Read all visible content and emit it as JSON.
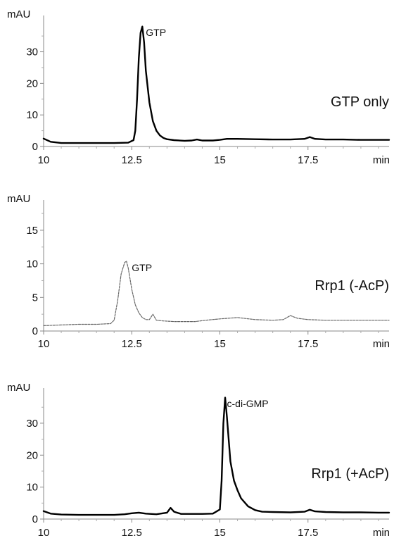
{
  "chart_data": [
    {
      "type": "line",
      "ylabel": "mAU",
      "xlabel": "min",
      "sample_label": "GTP only",
      "xlim": [
        10,
        19.8
      ],
      "ylim": [
        0,
        40
      ],
      "xticks": [
        10,
        12.5,
        15,
        17.5
      ],
      "xtick_labels": [
        "10",
        "12.5",
        "15",
        "17.5"
      ],
      "yticks": [
        0,
        10,
        20,
        30
      ],
      "ytick_labels": [
        "0",
        "10",
        "20",
        "30"
      ],
      "line_style": "solid",
      "line_width": 2.4,
      "annotations": [
        {
          "text": "GTP",
          "x": 12.9,
          "y": 35
        }
      ],
      "series": [
        {
          "x": [
            10.0,
            10.2,
            10.5,
            11.0,
            11.5,
            12.0,
            12.4,
            12.55,
            12.6,
            12.65,
            12.7,
            12.75,
            12.8,
            12.85,
            12.9,
            13.0,
            13.1,
            13.2,
            13.3,
            13.4,
            13.5,
            13.7,
            14.0,
            14.2,
            14.35,
            14.5,
            14.8,
            15.0,
            15.2,
            15.5,
            16.0,
            16.5,
            17.0,
            17.4,
            17.55,
            17.7,
            18.0,
            18.5,
            19.0,
            19.5,
            19.8
          ],
          "y": [
            2.5,
            1.5,
            1.1,
            1.1,
            1.1,
            1.1,
            1.2,
            2.0,
            5.0,
            15.0,
            28.0,
            36.0,
            38.0,
            33.0,
            24.0,
            14.0,
            8.0,
            5.0,
            3.5,
            2.7,
            2.3,
            2.0,
            1.8,
            1.9,
            2.2,
            1.9,
            1.9,
            2.1,
            2.4,
            2.4,
            2.3,
            2.2,
            2.2,
            2.4,
            3.0,
            2.4,
            2.2,
            2.2,
            2.1,
            2.1,
            2.1
          ]
        }
      ]
    },
    {
      "type": "line",
      "ylabel": "mAU",
      "xlabel": "min",
      "sample_label": "Rrp1 (-AcP)",
      "xlim": [
        10,
        19.8
      ],
      "ylim": [
        0,
        19
      ],
      "xticks": [
        10,
        12.5,
        15,
        17.5
      ],
      "xtick_labels": [
        "10",
        "12.5",
        "15",
        "17.5"
      ],
      "yticks": [
        0,
        5,
        10,
        15
      ],
      "ytick_labels": [
        "0",
        "5",
        "10",
        "15"
      ],
      "line_style": "dashed",
      "line_width": 1.2,
      "annotations": [
        {
          "text": "GTP",
          "x": 12.5,
          "y": 8.9
        }
      ],
      "series": [
        {
          "x": [
            10.0,
            10.5,
            11.0,
            11.5,
            11.9,
            12.0,
            12.1,
            12.2,
            12.3,
            12.35,
            12.4,
            12.5,
            12.6,
            12.7,
            12.8,
            12.9,
            13.0,
            13.1,
            13.2,
            13.4,
            13.7,
            14.0,
            14.3,
            14.6,
            15.0,
            15.5,
            16.0,
            16.5,
            16.8,
            17.0,
            17.2,
            17.5,
            18.0,
            18.5,
            19.0,
            19.8
          ],
          "y": [
            0.8,
            0.9,
            1.0,
            1.0,
            1.1,
            1.6,
            4.5,
            8.5,
            10.2,
            10.4,
            9.4,
            6.2,
            3.9,
            2.7,
            2.0,
            1.7,
            1.7,
            2.5,
            1.6,
            1.5,
            1.4,
            1.4,
            1.4,
            1.6,
            1.8,
            2.0,
            1.7,
            1.6,
            1.7,
            2.3,
            1.9,
            1.7,
            1.6,
            1.6,
            1.6,
            1.6
          ]
        }
      ]
    },
    {
      "type": "line",
      "ylabel": "mAU",
      "xlabel": "min",
      "sample_label": "Rrp1 (+AcP)",
      "xlim": [
        10,
        19.8
      ],
      "ylim": [
        0,
        40
      ],
      "xticks": [
        10,
        12.5,
        15,
        17.5
      ],
      "xtick_labels": [
        "10",
        "12.5",
        "15",
        "17.5"
      ],
      "yticks": [
        0,
        10,
        20,
        30
      ],
      "ytick_labels": [
        "0",
        "10",
        "20",
        "30"
      ],
      "line_style": "solid",
      "line_width": 2.4,
      "annotations": [
        {
          "text": "c-di-GMP",
          "x": 15.2,
          "y": 35
        }
      ],
      "series": [
        {
          "x": [
            10.0,
            10.2,
            10.5,
            11.0,
            11.5,
            12.0,
            12.3,
            12.5,
            12.7,
            12.9,
            13.2,
            13.5,
            13.6,
            13.7,
            13.9,
            14.2,
            14.5,
            14.8,
            15.0,
            15.05,
            15.1,
            15.15,
            15.2,
            15.3,
            15.4,
            15.5,
            15.6,
            15.8,
            16.0,
            16.2,
            16.5,
            17.0,
            17.4,
            17.55,
            17.7,
            18.0,
            18.5,
            19.0,
            19.5,
            19.8
          ],
          "y": [
            2.5,
            1.7,
            1.4,
            1.3,
            1.3,
            1.3,
            1.5,
            1.8,
            2.0,
            1.7,
            1.5,
            2.0,
            3.5,
            2.3,
            1.6,
            1.6,
            1.6,
            1.7,
            3.0,
            12.0,
            30.0,
            38.0,
            32.0,
            18.0,
            12.0,
            9.0,
            6.5,
            4.0,
            2.8,
            2.3,
            2.2,
            2.1,
            2.3,
            2.9,
            2.4,
            2.2,
            2.1,
            2.1,
            2.0,
            2.0
          ]
        }
      ]
    }
  ]
}
